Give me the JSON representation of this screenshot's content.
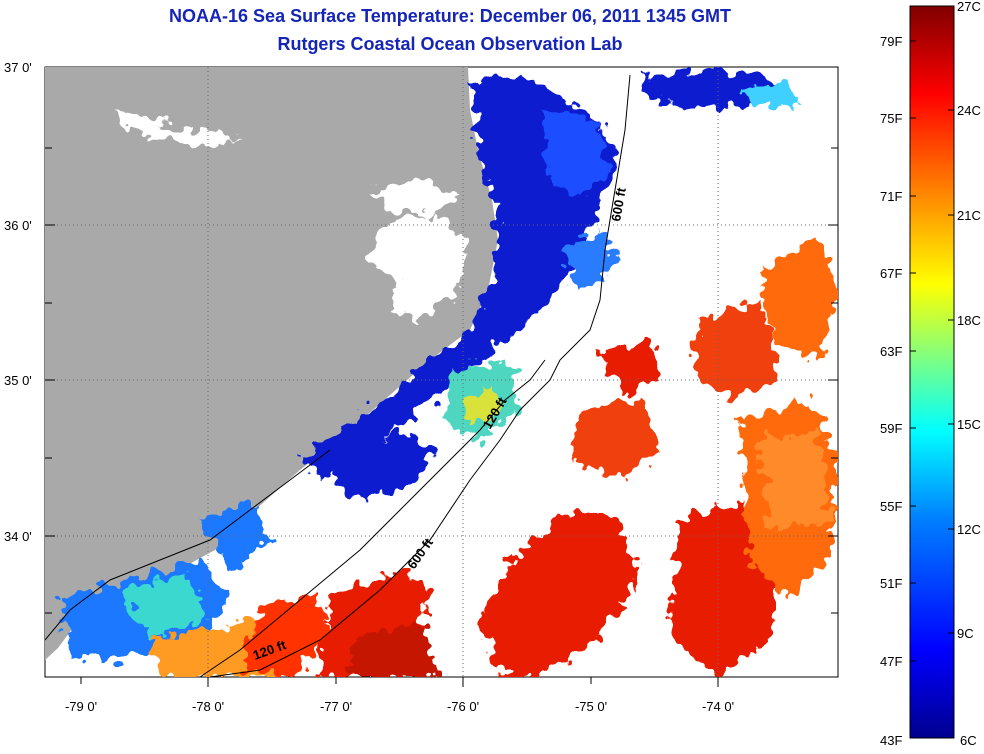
{
  "title": "NOAA-16 Sea Surface Temperature:  December 06, 2011 1345 GMT",
  "subtitle": "Rutgers Coastal Ocean Observation Lab",
  "colors": {
    "land": "#a9a9a9",
    "cloud": "#ffffff",
    "accent_title": "#1525b5"
  },
  "map": {
    "lat_labels": [
      "37 0'",
      "36 0'",
      "35 0'",
      "34 0'"
    ],
    "lon_labels": [
      "-79 0'",
      "-78 0'",
      "-77 0'",
      "-76 0'",
      "-75 0'",
      "-74 0'"
    ],
    "contours": [
      {
        "name": "600-ft-isobath-north",
        "label": "600 ft"
      },
      {
        "name": "120-ft-isobath-mid",
        "label": "120 ft"
      },
      {
        "name": "600-ft-isobath-south",
        "label": "600 ft"
      },
      {
        "name": "120-ft-isobath-south",
        "label": "120 ft"
      }
    ]
  },
  "colorbar": {
    "fahrenheit_labels": [
      "79F",
      "75F",
      "71F",
      "67F",
      "63F",
      "59F",
      "55F",
      "51F",
      "47F",
      "43F"
    ],
    "celsius_labels": [
      "27C",
      "24C",
      "21C",
      "18C",
      "15C",
      "12C",
      "9C",
      "6C"
    ],
    "range_c": [
      6,
      27
    ],
    "range_f": [
      43,
      80.6
    ],
    "scale_colors": [
      "#00008f",
      "#0000ff",
      "#0080ff",
      "#00ffff",
      "#80ff80",
      "#ffff00",
      "#ff8000",
      "#ff0000",
      "#800000"
    ]
  }
}
